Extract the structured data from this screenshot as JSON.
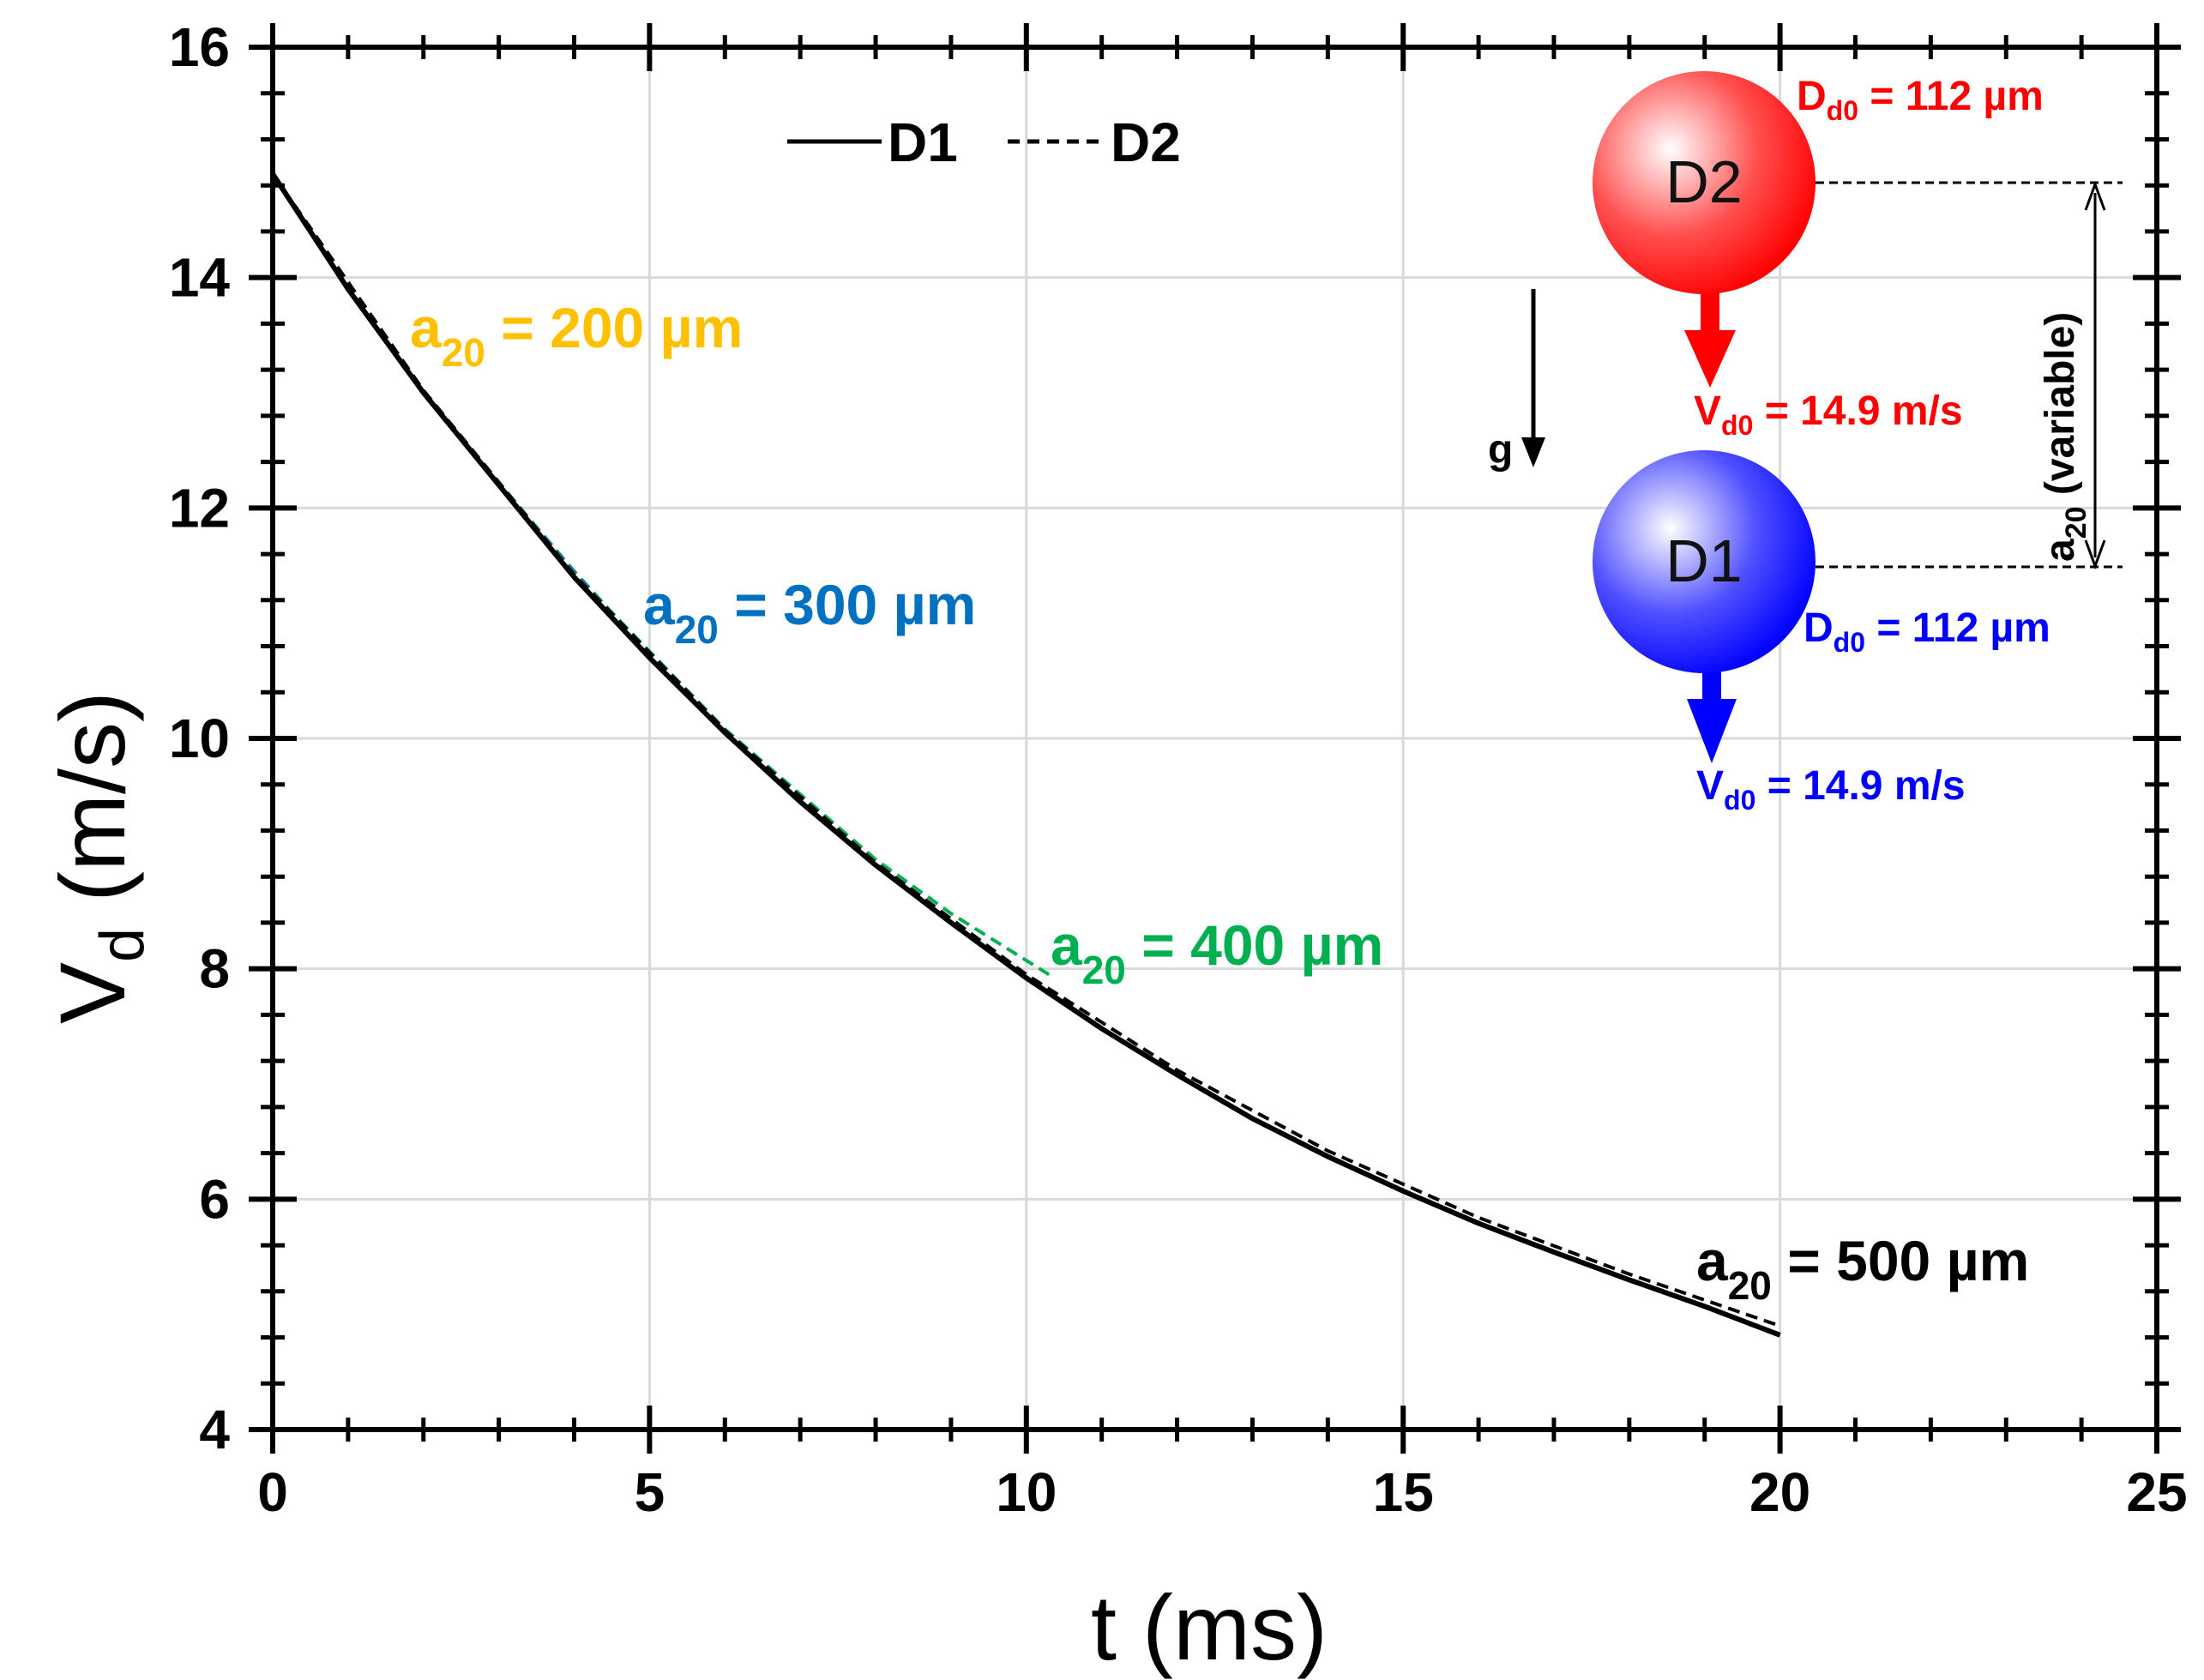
{
  "chart_data": {
    "type": "line",
    "title": "",
    "xlabel": "t (ms)",
    "ylabel_main": "V",
    "ylabel_sub": "d",
    "ylabel_unit": " (m/s)",
    "xlim": [
      0,
      25
    ],
    "ylim": [
      4,
      16
    ],
    "xticks": [
      0,
      5,
      10,
      15,
      20,
      25
    ],
    "yticks": [
      4,
      6,
      8,
      10,
      12,
      14,
      16
    ],
    "grid": true,
    "legend_position": "top-center",
    "series": [
      {
        "name": "D1",
        "style": "solid",
        "color": "#000000",
        "x": [
          0,
          1,
          2,
          3,
          4,
          5,
          6,
          7,
          8,
          9,
          10,
          11,
          12,
          13,
          14,
          15,
          16,
          17,
          18,
          19,
          20
        ],
        "y": [
          14.9,
          13.9,
          13.0,
          12.2,
          11.4,
          10.7,
          10.05,
          9.45,
          8.9,
          8.4,
          7.92,
          7.48,
          7.08,
          6.7,
          6.37,
          6.07,
          5.79,
          5.54,
          5.3,
          5.07,
          4.82
        ]
      },
      {
        "name": "D2 (a20 = 200 µm)",
        "style": "dashed",
        "color": "#FFC000",
        "x": [
          0,
          0.5,
          1.0,
          1.5
        ],
        "y": [
          14.9,
          14.4,
          13.9,
          13.45
        ]
      },
      {
        "name": "D2 (a20 = 300 µm)",
        "style": "dashed",
        "color": "#0070C0",
        "x": [
          0,
          1,
          2,
          3,
          4,
          4.7
        ],
        "y": [
          14.9,
          13.92,
          13.02,
          12.22,
          11.45,
          10.95
        ]
      },
      {
        "name": "D2 (a20 = 400 µm)",
        "style": "dashed",
        "color": "#00B050",
        "x": [
          0,
          2,
          4,
          6,
          8,
          9,
          10.3
        ],
        "y": [
          14.9,
          13.02,
          11.43,
          10.08,
          8.95,
          8.48,
          7.95
        ]
      },
      {
        "name": "D2",
        "style": "dashed",
        "color": "#000000",
        "x": [
          0,
          2,
          4,
          6,
          8,
          10,
          12,
          14,
          16,
          18,
          20
        ],
        "y": [
          14.9,
          13.02,
          11.42,
          10.07,
          8.92,
          7.95,
          7.12,
          6.42,
          5.84,
          5.35,
          4.9
        ]
      }
    ],
    "legend": [
      {
        "label": "D1",
        "style": "solid"
      },
      {
        "label": "D2",
        "style": "dashed"
      }
    ],
    "annotations": [
      {
        "main": "a",
        "sub": "20",
        "rest": " = 200 µm",
        "color": "#FFC000"
      },
      {
        "main": "a",
        "sub": "20",
        "rest": " = 300 µm",
        "color": "#0070C0"
      },
      {
        "main": "a",
        "sub": "20",
        "rest": " = 400 µm",
        "color": "#00B050"
      },
      {
        "main": "a",
        "sub": "20",
        "rest": " = 500 µm",
        "color": "#000000"
      }
    ]
  },
  "schematic": {
    "drop_top_label": "D2",
    "drop_bottom_label": "D1",
    "top_diam": {
      "main": "D",
      "sub": "d0",
      "rest": " = 112 µm",
      "color": "#FF0000"
    },
    "top_vel": {
      "main": "V",
      "sub": "d0",
      "rest": " = 14.9 m/s",
      "color": "#FF0000"
    },
    "bottom_diam": {
      "main": "D",
      "sub": "d0",
      "rest": " = 112 µm",
      "color": "#0000FF"
    },
    "bottom_vel": {
      "main": "V",
      "sub": "d0",
      "rest": " = 14.9 m/s",
      "color": "#0000FF"
    },
    "gravity_label": "g",
    "spacing": {
      "main": "a",
      "sub": "20",
      "rest": " (variable)"
    }
  }
}
